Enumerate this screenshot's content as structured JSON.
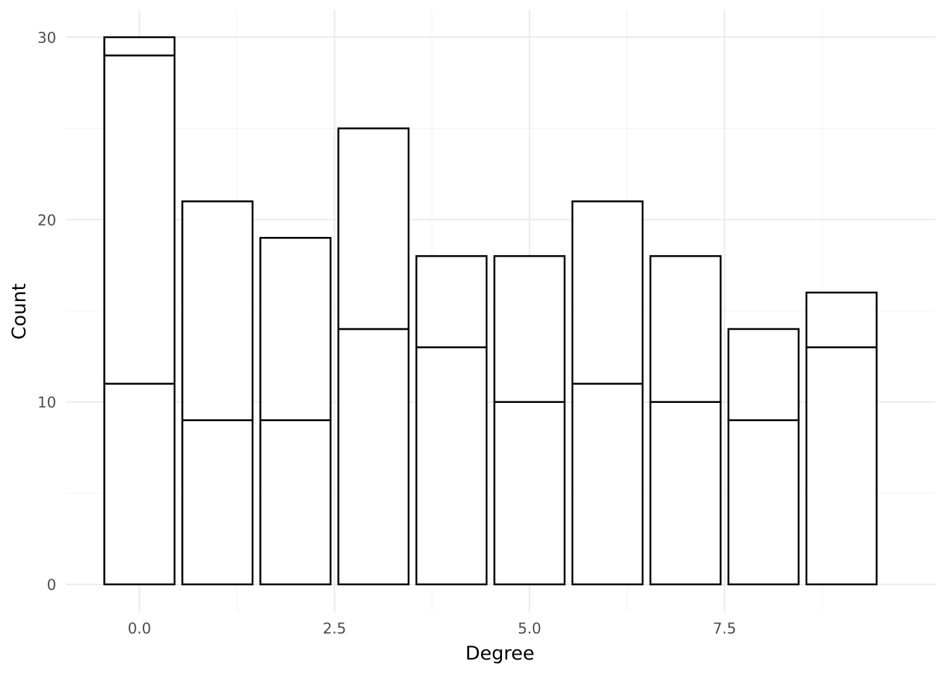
{
  "chart_data": {
    "type": "bar",
    "stacked": true,
    "xlabel": "Degree",
    "ylabel": "Count",
    "x": [
      0,
      1,
      2,
      3,
      4,
      5,
      6,
      7,
      8,
      9
    ],
    "segment_boundaries": [
      [
        11,
        29,
        30
      ],
      [
        9,
        21
      ],
      [
        9,
        19
      ],
      [
        14,
        25
      ],
      [
        13,
        18
      ],
      [
        10,
        18
      ],
      [
        11,
        21
      ],
      [
        10,
        18
      ],
      [
        9,
        14
      ],
      [
        13,
        16
      ]
    ],
    "totals": [
      30,
      21,
      19,
      25,
      18,
      18,
      21,
      18,
      14,
      16
    ],
    "xlim": [
      -0.94,
      10.2
    ],
    "ylim": [
      -1.5,
      31.5
    ],
    "x_ticks": [
      0.0,
      2.5,
      5.0,
      7.5
    ],
    "x_tick_labels": [
      "0.0",
      "2.5",
      "5.0",
      "7.5"
    ],
    "y_ticks": [
      0,
      10,
      20,
      30
    ],
    "y_tick_labels": [
      "0",
      "10",
      "20",
      "30"
    ],
    "grid": true,
    "legend": "none",
    "colors": {
      "bar_fill": "#ffffff",
      "bar_stroke": "#000000",
      "grid": "#ebebeb"
    }
  }
}
